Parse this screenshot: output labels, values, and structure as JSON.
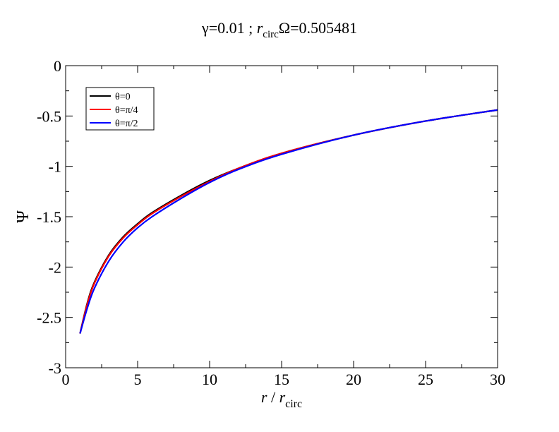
{
  "chart_data": {
    "type": "line",
    "title": {
      "prefix": "γ=0.01 ; ",
      "r": "r",
      "r_sub": "circ",
      "suffix": "Ω=0.505481"
    },
    "xlabel": {
      "r": "r",
      "mid": " / ",
      "r2": "r",
      "sub": "circ"
    },
    "ylabel": "Ψ",
    "xlim": [
      0,
      30
    ],
    "ylim": [
      -3,
      0
    ],
    "x_ticks": [
      0,
      5,
      10,
      15,
      20,
      25,
      30
    ],
    "x_tick_labels": [
      "0",
      "5",
      "10",
      "15",
      "20",
      "25",
      "30"
    ],
    "y_ticks": [
      0,
      -0.5,
      -1,
      -1.5,
      -2,
      -2.5,
      -3
    ],
    "y_tick_labels": [
      "0",
      "-0.5",
      "-1",
      "-1.5",
      "-2",
      "-2.5",
      "-3"
    ],
    "grid": false,
    "legend_position": "top-left",
    "series": [
      {
        "name": "θ=0",
        "color": "#000000",
        "x": [
          1.0,
          1.5,
          2,
          3,
          4,
          5,
          6,
          8,
          10,
          12,
          15,
          20,
          25,
          30
        ],
        "y": [
          -2.66,
          -2.36,
          -2.15,
          -1.88,
          -1.7,
          -1.57,
          -1.46,
          -1.29,
          -1.14,
          -1.02,
          -0.87,
          -0.69,
          -0.55,
          -0.44
        ]
      },
      {
        "name": "θ=π/4",
        "color": "#ff0000",
        "x": [
          1.0,
          1.5,
          2,
          3,
          4,
          5,
          6,
          8,
          10,
          12,
          15,
          20,
          25,
          30
        ],
        "y": [
          -2.66,
          -2.37,
          -2.16,
          -1.89,
          -1.71,
          -1.58,
          -1.47,
          -1.3,
          -1.15,
          -1.02,
          -0.87,
          -0.69,
          -0.55,
          -0.44
        ]
      },
      {
        "name": "θ=π/2",
        "color": "#0000ff",
        "x": [
          1.0,
          1.5,
          2,
          3,
          4,
          5,
          6,
          8,
          10,
          12,
          15,
          20,
          25,
          30
        ],
        "y": [
          -2.66,
          -2.41,
          -2.21,
          -1.94,
          -1.75,
          -1.61,
          -1.5,
          -1.32,
          -1.16,
          -1.03,
          -0.88,
          -0.69,
          -0.55,
          -0.44
        ]
      }
    ]
  }
}
